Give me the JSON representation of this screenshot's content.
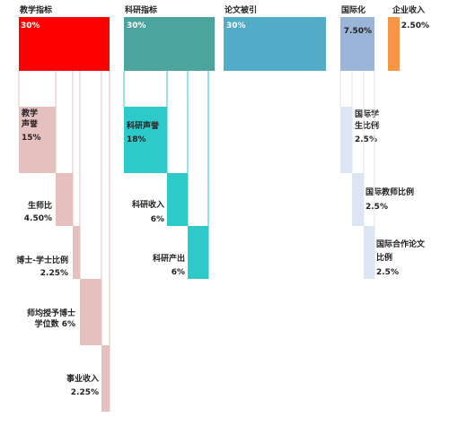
{
  "chart_data": {
    "type": "bar",
    "title": "",
    "groups": [
      {
        "name": "教学指标",
        "value": "30%",
        "weight": 30,
        "color": "#ff0000",
        "children": [
          {
            "label": [
              "教学",
              "声誉"
            ],
            "value": "15%",
            "weight": 15
          },
          {
            "label": [
              "生师比"
            ],
            "value": "4.50%",
            "weight": 4.5
          },
          {
            "label": [
              "博士-学士比例"
            ],
            "value": "2.25%",
            "weight": 2.25
          },
          {
            "label": [
              "师均授予博士",
              "学位数"
            ],
            "value": "6%",
            "weight": 6
          },
          {
            "label": [
              "事业收入"
            ],
            "value": "2.25%",
            "weight": 2.25
          }
        ],
        "child_color": "#e6bfbf"
      },
      {
        "name": "科研指标",
        "value": "30%",
        "weight": 30,
        "color": "#4da39e",
        "children": [
          {
            "label": [
              "科研声誉"
            ],
            "value": "18%",
            "weight": 18
          },
          {
            "label": [
              "科研收入"
            ],
            "value": "6%",
            "weight": 6
          },
          {
            "label": [
              "科研产出"
            ],
            "value": "6%",
            "weight": 6
          }
        ],
        "child_color": "#2ec9c9"
      },
      {
        "name": "论文被引",
        "value": "30%",
        "weight": 30,
        "color": "#52acc7",
        "children": []
      },
      {
        "name": "国际化",
        "value": "7.50%",
        "weight": 7.5,
        "color": "#9bb5d9",
        "children": [
          {
            "label": [
              "国际学",
              "生比例"
            ],
            "value": "2.5%",
            "weight": 2.5
          },
          {
            "label": [
              "国际教师比例"
            ],
            "value": "2.5%",
            "weight": 2.5
          },
          {
            "label": [
              "国际合作论文",
              "比例"
            ],
            "value": "2.5%",
            "weight": 2.5
          }
        ],
        "child_color": "#dce6f2"
      },
      {
        "name": "企业收入",
        "value": "2.50%",
        "weight": 2.5,
        "color": "#f79646",
        "children": []
      }
    ]
  }
}
